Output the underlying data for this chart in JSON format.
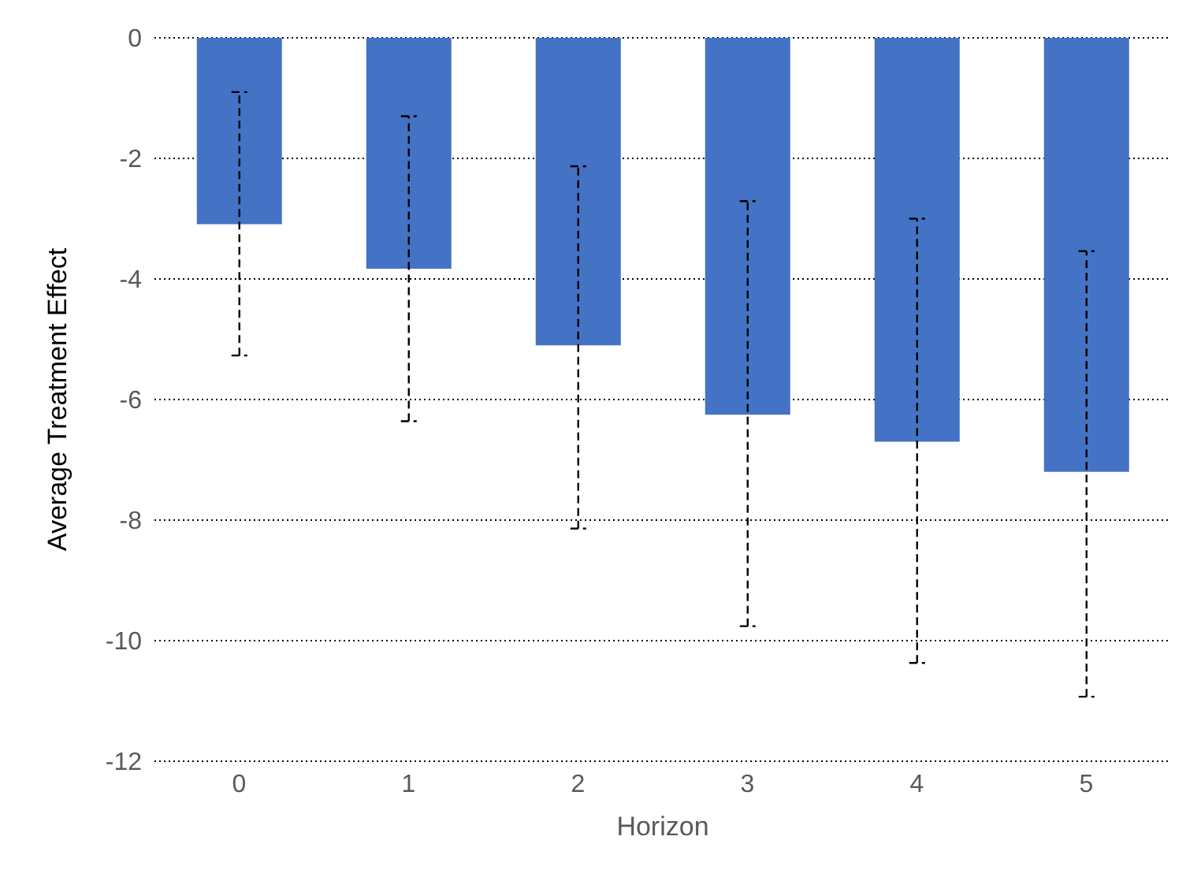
{
  "chart_data": {
    "type": "bar",
    "xlabel": "Horizon",
    "ylabel": "Average Treatment Effect",
    "categories": [
      "0",
      "1",
      "2",
      "3",
      "4",
      "5"
    ],
    "series": [
      {
        "color": "#4472c4",
        "values": [
          -3.09,
          -3.83,
          -5.1,
          -6.25,
          -6.7,
          -7.2
        ],
        "errors": [
          [
            -5.27,
            -0.9
          ],
          [
            -6.36,
            -1.3
          ],
          [
            -8.14,
            -2.13
          ],
          [
            -9.76,
            -2.71
          ],
          [
            -10.37,
            -3.0
          ],
          [
            -10.93,
            -3.54
          ]
        ]
      }
    ],
    "ylim": [
      -12,
      0
    ],
    "yticks": [
      -12,
      -10,
      -8,
      -6,
      -4,
      -2,
      0
    ],
    "grid": "y",
    "legend": false
  }
}
